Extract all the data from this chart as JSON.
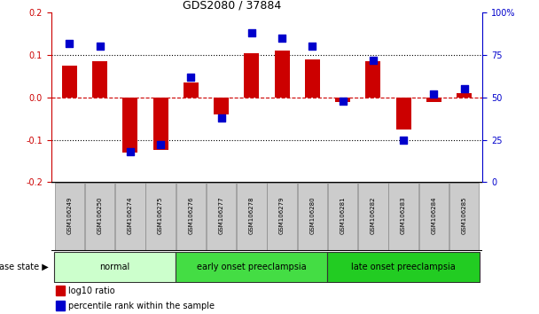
{
  "title": "GDS2080 / 37884",
  "samples": [
    "GSM106249",
    "GSM106250",
    "GSM106274",
    "GSM106275",
    "GSM106276",
    "GSM106277",
    "GSM106278",
    "GSM106279",
    "GSM106280",
    "GSM106281",
    "GSM106282",
    "GSM106283",
    "GSM106284",
    "GSM106285"
  ],
  "log10_ratio": [
    0.075,
    0.085,
    -0.13,
    -0.125,
    0.035,
    -0.04,
    0.105,
    0.11,
    0.09,
    -0.01,
    0.085,
    -0.075,
    -0.01,
    0.01
  ],
  "percentile_rank": [
    82,
    80,
    18,
    22,
    62,
    38,
    88,
    85,
    80,
    48,
    72,
    25,
    52,
    55
  ],
  "ylim_left": [
    -0.2,
    0.2
  ],
  "ylim_right": [
    0,
    100
  ],
  "yticks_left": [
    -0.2,
    -0.1,
    0.0,
    0.1,
    0.2
  ],
  "yticks_right": [
    0,
    25,
    50,
    75,
    100
  ],
  "ytick_labels_right": [
    "0",
    "25",
    "50",
    "75",
    "100%"
  ],
  "bar_color": "#cc0000",
  "dot_color": "#0000cc",
  "grid_color": "#000000",
  "dashed_line_color": "#cc0000",
  "groups": [
    {
      "label": "normal",
      "start": 0,
      "end": 3,
      "color": "#ccffcc"
    },
    {
      "label": "early onset preeclampsia",
      "start": 4,
      "end": 8,
      "color": "#44dd44"
    },
    {
      "label": "late onset preeclampsia",
      "start": 9,
      "end": 13,
      "color": "#22cc22"
    }
  ],
  "disease_state_label": "disease state",
  "legend_bar_label": "log10 ratio",
  "legend_dot_label": "percentile rank within the sample",
  "background_color": "#ffffff",
  "tick_label_color_left": "#cc0000",
  "tick_label_color_right": "#0000cc",
  "bar_width": 0.5,
  "dot_size": 28,
  "sample_box_color": "#cccccc",
  "sample_box_edge": "#888888"
}
